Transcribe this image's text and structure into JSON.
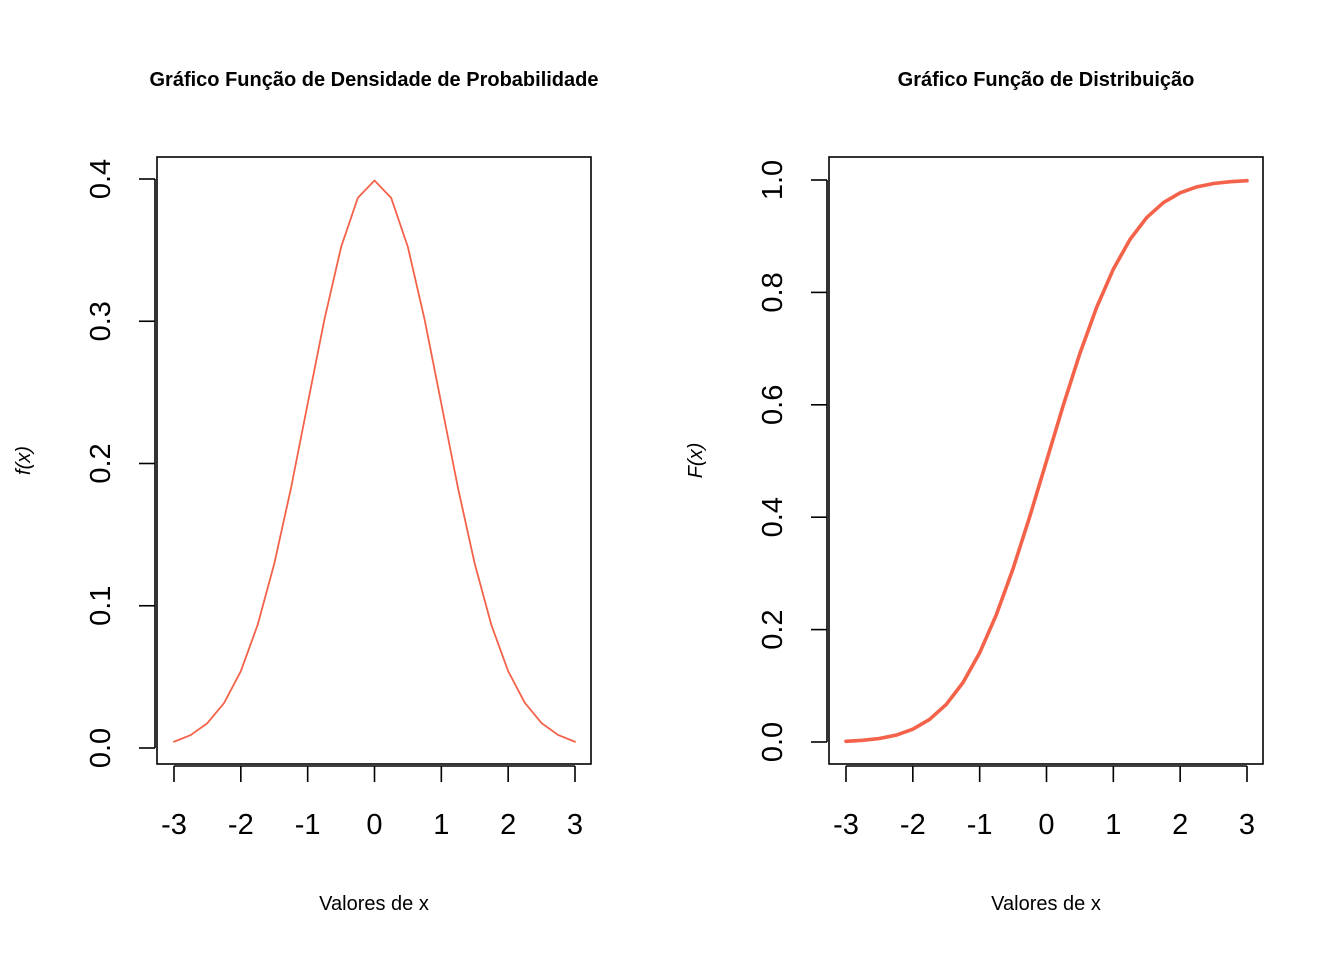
{
  "chart_data": [
    {
      "type": "line",
      "title": "Gráfico Função de Densidade de Probabilidade",
      "xlabel": "Valores de x",
      "ylabel": "f(x)",
      "xlim": [
        -3,
        3
      ],
      "ylim": [
        0,
        0.4
      ],
      "x_ticks": [
        "-3",
        "-2",
        "-1",
        "0",
        "1",
        "2",
        "3"
      ],
      "y_ticks": [
        "0.0",
        "0.1",
        "0.2",
        "0.3",
        "0.4"
      ],
      "grid": false,
      "series_color": "#f4624a",
      "x": [
        -3,
        -2.75,
        -2.5,
        -2.25,
        -2,
        -1.75,
        -1.5,
        -1.25,
        -1,
        -0.75,
        -0.5,
        -0.25,
        0,
        0.25,
        0.5,
        0.75,
        1,
        1.25,
        1.5,
        1.75,
        2,
        2.25,
        2.5,
        2.75,
        3
      ],
      "y": [
        0.0044,
        0.0091,
        0.0175,
        0.0317,
        0.054,
        0.0863,
        0.1295,
        0.1826,
        0.242,
        0.3011,
        0.3521,
        0.3867,
        0.3989,
        0.3867,
        0.3521,
        0.3011,
        0.242,
        0.1826,
        0.1295,
        0.0863,
        0.054,
        0.0317,
        0.0175,
        0.0091,
        0.0044
      ]
    },
    {
      "type": "line",
      "title": "Gráfico Função de Distribuição",
      "xlabel": "Valores de x",
      "ylabel": "F(x)",
      "xlim": [
        -3,
        3
      ],
      "ylim": [
        0,
        1
      ],
      "x_ticks": [
        "-3",
        "-2",
        "-1",
        "0",
        "1",
        "2",
        "3"
      ],
      "y_ticks": [
        "0.0",
        "0.2",
        "0.4",
        "0.6",
        "0.8",
        "1.0"
      ],
      "grid": false,
      "series_color": "#f4624a",
      "x": [
        -3,
        -2.75,
        -2.5,
        -2.25,
        -2,
        -1.75,
        -1.5,
        -1.25,
        -1,
        -0.75,
        -0.5,
        -0.25,
        0,
        0.25,
        0.5,
        0.75,
        1,
        1.25,
        1.5,
        1.75,
        2,
        2.25,
        2.5,
        2.75,
        3
      ],
      "y": [
        0.0013,
        0.003,
        0.0062,
        0.0122,
        0.0228,
        0.0401,
        0.0668,
        0.1056,
        0.1587,
        0.2266,
        0.3085,
        0.4013,
        0.5,
        0.5987,
        0.6915,
        0.7734,
        0.8413,
        0.8944,
        0.9332,
        0.9599,
        0.9772,
        0.9878,
        0.9938,
        0.997,
        0.9987
      ]
    }
  ]
}
